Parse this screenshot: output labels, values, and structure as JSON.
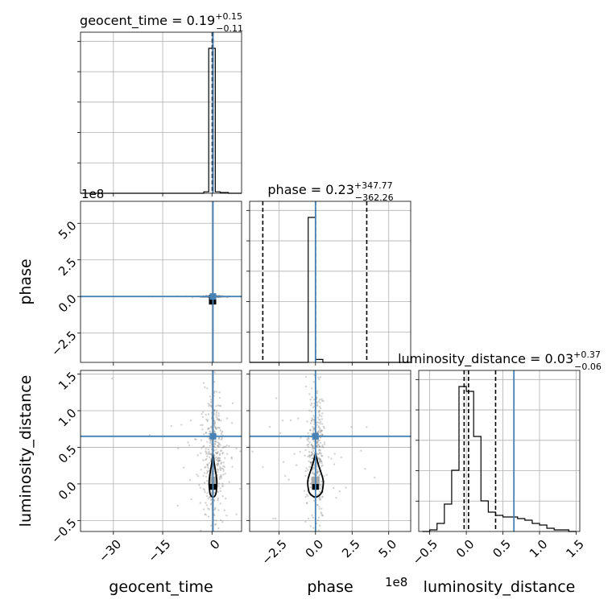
{
  "chart_data": {
    "type": "corner",
    "parameters": [
      "geocent_time",
      "phase",
      "luminosity_distance"
    ],
    "axis_labels": {
      "x": [
        "geocent_time",
        "phase",
        "luminosity_distance"
      ],
      "y": [
        "phase",
        "luminosity_distance"
      ]
    },
    "titles": [
      {
        "param": "geocent_time",
        "prefix": "geocent_time = 0.19",
        "plus": "+0.15",
        "minus": "−0.11"
      },
      {
        "param": "phase",
        "prefix": "phase = 0.23",
        "plus": "+347.77",
        "minus": "−362.26"
      },
      {
        "param": "luminosity_distance",
        "prefix": "luminosity_distance = 0.03",
        "plus": "+0.37",
        "minus": "−0.06"
      }
    ],
    "ranges": {
      "geocent_time": [
        -40,
        9
      ],
      "phase": [
        -450000000.0,
        650000000.0
      ],
      "luminosity_distance": [
        -0.65,
        1.55
      ]
    },
    "ticks": {
      "geocent_time": {
        "values": [
          -30,
          -15,
          0
        ],
        "labels": [
          "−30",
          "−15",
          "0"
        ]
      },
      "phase": {
        "values": [
          -250000000.0,
          0,
          250000000.0,
          500000000.0
        ],
        "labels": [
          "−2.5",
          "0.0",
          "2.5",
          "5.0"
        ],
        "offset_label": "1e8"
      },
      "luminosity_distance": {
        "values": [
          -0.5,
          0,
          0.5,
          1.0,
          1.5
        ],
        "labels": [
          "−0.5",
          "0.0",
          "0.5",
          "1.0",
          "1.5"
        ]
      }
    },
    "truths": {
      "geocent_time": 0.3,
      "phase": 0.0,
      "luminosity_distance": 0.65
    },
    "quantiles": {
      "geocent_time": [
        0.08,
        0.19,
        0.34
      ],
      "phase": [
        -360000000.0,
        0.23,
        350000000.0
      ],
      "luminosity_distance": [
        -0.03,
        0.03,
        0.4
      ]
    },
    "histograms": {
      "geocent_time": {
        "edges": [
          -40,
          -37.5,
          -35,
          -32.5,
          -30,
          -27.5,
          -25,
          -22.5,
          -20,
          -17.5,
          -15,
          -12.5,
          -10,
          -7.5,
          -5,
          -2.5,
          -1,
          1,
          2.5,
          5,
          7.5,
          9
        ],
        "counts": [
          0,
          0,
          0,
          0,
          0,
          0,
          0,
          0,
          0,
          0,
          0,
          0,
          0,
          0,
          0,
          0.01,
          1.0,
          0.01,
          0.005,
          0,
          0
        ]
      },
      "phase": {
        "edges": [
          -450000000.0,
          -400000000.0,
          -350000000.0,
          -300000000.0,
          -250000000.0,
          -200000000.0,
          -150000000.0,
          -100000000.0,
          -50000000.0,
          0,
          50000000.0,
          100000000.0,
          150000000.0,
          200000000.0,
          250000000.0,
          300000000.0,
          350000000.0,
          400000000.0,
          450000000.0,
          500000000.0,
          550000000.0,
          600000000.0,
          650000000.0
        ],
        "counts": [
          0,
          0,
          0,
          0,
          0,
          0,
          0,
          0,
          1.0,
          0.02,
          0,
          0,
          0,
          0,
          0,
          0,
          0,
          0,
          0,
          0,
          0,
          0
        ]
      },
      "luminosity_distance": {
        "edges": [
          -0.6,
          -0.5,
          -0.4,
          -0.3,
          -0.2,
          -0.1,
          0,
          0.1,
          0.2,
          0.3,
          0.4,
          0.5,
          0.6,
          0.7,
          0.8,
          0.9,
          1.0,
          1.1,
          1.2,
          1.3,
          1.4,
          1.5
        ],
        "counts": [
          0,
          0.01,
          0.05,
          0.17,
          0.38,
          0.9,
          0.87,
          0.59,
          0.19,
          0.12,
          0.1,
          0.09,
          0.09,
          0.08,
          0.07,
          0.05,
          0.04,
          0.02,
          0.01,
          0.01,
          0
        ]
      }
    },
    "contour_2d": {
      "luminosity_distance_center": 0.1,
      "luminosity_distance_width": 0.28
    },
    "grid": true,
    "colors": {
      "truth": "#4682b4",
      "hist": "#000000",
      "scatter": "#808080",
      "grid": "#b0b0b0"
    }
  }
}
